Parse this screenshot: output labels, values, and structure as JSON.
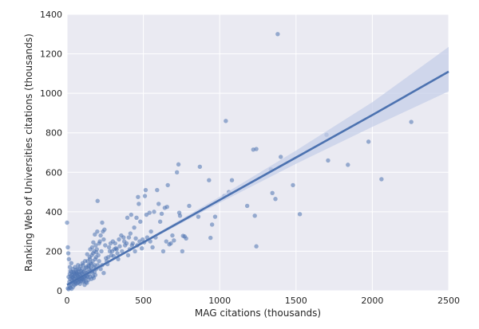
{
  "chart_data": {
    "type": "scatter",
    "title": "",
    "xlabel": "MAG citations (thousands)",
    "ylabel": "Ranking Web of Universities citations (thousands)",
    "xlim": [
      0,
      2500
    ],
    "ylim": [
      0,
      1400
    ],
    "x_ticks": [
      0,
      500,
      1000,
      1500,
      2000,
      2500
    ],
    "y_ticks": [
      0,
      200,
      400,
      600,
      800,
      1000,
      1200,
      1400
    ],
    "x_tick_labels": [
      "0",
      "500",
      "1000",
      "1500",
      "2000",
      "2500"
    ],
    "y_tick_labels": [
      "0",
      "200",
      "400",
      "600",
      "800",
      "1000",
      "1200",
      "1400"
    ],
    "grid": true,
    "colors": {
      "background": "#eaeaf2",
      "grid": "#ffffff",
      "points": "#4c72b0",
      "fit_line": "#4c72b0",
      "confidence_band": "#c5cfe8"
    },
    "regression": {
      "x": [
        0,
        500,
        1000,
        1500,
        2000,
        2500
      ],
      "y": [
        30,
        245,
        460,
        675,
        890,
        1110
      ],
      "ci_upper": [
        36,
        251,
        476,
        710,
        955,
        1235
      ],
      "ci_lower": [
        24,
        239,
        446,
        643,
        830,
        1010
      ]
    },
    "points": [
      [
        1380,
        1300
      ],
      [
        2255,
        855
      ],
      [
        1040,
        860
      ],
      [
        1700,
        790
      ],
      [
        1975,
        755
      ],
      [
        1220,
        715
      ],
      [
        1240,
        718
      ],
      [
        2060,
        565
      ],
      [
        1840,
        638
      ],
      [
        1710,
        660
      ],
      [
        1400,
        678
      ],
      [
        1335,
        615
      ],
      [
        1480,
        535
      ],
      [
        1345,
        495
      ],
      [
        1365,
        465
      ],
      [
        1525,
        388
      ],
      [
        1230,
        380
      ],
      [
        1240,
        225
      ],
      [
        1030,
        480
      ],
      [
        1060,
        500
      ],
      [
        1080,
        560
      ],
      [
        1180,
        430
      ],
      [
        970,
        375
      ],
      [
        950,
        335
      ],
      [
        940,
        268
      ],
      [
        930,
        560
      ],
      [
        870,
        628
      ],
      [
        860,
        375
      ],
      [
        800,
        430
      ],
      [
        780,
        265
      ],
      [
        770,
        275
      ],
      [
        760,
        278
      ],
      [
        755,
        200
      ],
      [
        740,
        380
      ],
      [
        735,
        395
      ],
      [
        720,
        600
      ],
      [
        730,
        640
      ],
      [
        690,
        280
      ],
      [
        680,
        240
      ],
      [
        660,
        535
      ],
      [
        655,
        425
      ],
      [
        640,
        420
      ],
      [
        620,
        390
      ],
      [
        610,
        350
      ],
      [
        600,
        440
      ],
      [
        590,
        510
      ],
      [
        570,
        400
      ],
      [
        550,
        300
      ],
      [
        540,
        395
      ],
      [
        520,
        385
      ],
      [
        515,
        510
      ],
      [
        510,
        480
      ],
      [
        495,
        260
      ],
      [
        480,
        350
      ],
      [
        470,
        440
      ],
      [
        465,
        475
      ],
      [
        455,
        370
      ],
      [
        450,
        265
      ],
      [
        440,
        320
      ],
      [
        430,
        240
      ],
      [
        420,
        385
      ],
      [
        415,
        290
      ],
      [
        410,
        210
      ],
      [
        400,
        180
      ],
      [
        395,
        370
      ],
      [
        380,
        230
      ],
      [
        370,
        270
      ],
      [
        360,
        200
      ],
      [
        340,
        260
      ],
      [
        330,
        190
      ],
      [
        320,
        215
      ],
      [
        310,
        210
      ],
      [
        300,
        250
      ],
      [
        290,
        180
      ],
      [
        280,
        200
      ],
      [
        270,
        170
      ],
      [
        260,
        150
      ],
      [
        250,
        230
      ],
      [
        245,
        310
      ],
      [
        235,
        300
      ],
      [
        230,
        345
      ],
      [
        220,
        280
      ],
      [
        215,
        250
      ],
      [
        210,
        240
      ],
      [
        200,
        455
      ],
      [
        195,
        210
      ],
      [
        190,
        170
      ],
      [
        185,
        160
      ],
      [
        180,
        130
      ],
      [
        175,
        120
      ],
      [
        170,
        190
      ],
      [
        165,
        220
      ],
      [
        160,
        100
      ],
      [
        155,
        140
      ],
      [
        150,
        160
      ],
      [
        145,
        110
      ],
      [
        140,
        130
      ],
      [
        135,
        150
      ],
      [
        130,
        90
      ],
      [
        125,
        120
      ],
      [
        120,
        80
      ],
      [
        115,
        100
      ],
      [
        110,
        70
      ],
      [
        105,
        130
      ],
      [
        100,
        60
      ],
      [
        95,
        90
      ],
      [
        90,
        50
      ],
      [
        85,
        80
      ],
      [
        80,
        110
      ],
      [
        75,
        60
      ],
      [
        70,
        40
      ],
      [
        65,
        90
      ],
      [
        60,
        50
      ],
      [
        55,
        70
      ],
      [
        50,
        30
      ],
      [
        45,
        60
      ],
      [
        40,
        20
      ],
      [
        35,
        40
      ],
      [
        30,
        10
      ],
      [
        25,
        30
      ],
      [
        20,
        15
      ],
      [
        15,
        25
      ],
      [
        10,
        8
      ],
      [
        5,
        12
      ],
      [
        0,
        345
      ],
      [
        5,
        220
      ],
      [
        8,
        190
      ],
      [
        12,
        160
      ],
      [
        18,
        120
      ],
      [
        22,
        100
      ],
      [
        28,
        140
      ],
      [
        32,
        80
      ],
      [
        38,
        110
      ],
      [
        42,
        95
      ],
      [
        48,
        75
      ],
      [
        52,
        120
      ],
      [
        58,
        105
      ],
      [
        62,
        85
      ],
      [
        68,
        65
      ],
      [
        72,
        130
      ],
      [
        78,
        95
      ],
      [
        82,
        55
      ],
      [
        88,
        125
      ],
      [
        92,
        70
      ],
      [
        98,
        110
      ],
      [
        102,
        140
      ],
      [
        108,
        95
      ],
      [
        112,
        60
      ],
      [
        118,
        150
      ],
      [
        122,
        115
      ],
      [
        128,
        75
      ],
      [
        132,
        185
      ],
      [
        138,
        95
      ],
      [
        142,
        125
      ],
      [
        148,
        170
      ],
      [
        152,
        210
      ],
      [
        158,
        135
      ],
      [
        162,
        180
      ],
      [
        168,
        150
      ],
      [
        172,
        245
      ],
      [
        178,
        200
      ],
      [
        182,
        285
      ],
      [
        188,
        230
      ],
      [
        192,
        195
      ],
      [
        198,
        300
      ],
      [
        205,
        180
      ],
      [
        225,
        200
      ],
      [
        240,
        260
      ],
      [
        255,
        165
      ],
      [
        265,
        135
      ],
      [
        275,
        220
      ],
      [
        285,
        240
      ],
      [
        295,
        200
      ],
      [
        305,
        175
      ],
      [
        315,
        240
      ],
      [
        325,
        210
      ],
      [
        335,
        160
      ],
      [
        345,
        225
      ],
      [
        355,
        280
      ],
      [
        375,
        250
      ],
      [
        390,
        240
      ],
      [
        405,
        270
      ],
      [
        425,
        230
      ],
      [
        445,
        200
      ],
      [
        460,
        230
      ],
      [
        475,
        250
      ],
      [
        490,
        215
      ],
      [
        505,
        245
      ],
      [
        525,
        270
      ],
      [
        545,
        250
      ],
      [
        560,
        220
      ],
      [
        580,
        270
      ],
      [
        630,
        200
      ],
      [
        650,
        250
      ],
      [
        670,
        235
      ],
      [
        700,
        255
      ],
      [
        30,
        55
      ],
      [
        40,
        45
      ],
      [
        50,
        85
      ],
      [
        60,
        35
      ],
      [
        70,
        75
      ],
      [
        80,
        45
      ],
      [
        90,
        100
      ],
      [
        100,
        85
      ],
      [
        110,
        50
      ],
      [
        120,
        65
      ],
      [
        20,
        60
      ],
      [
        25,
        75
      ],
      [
        35,
        65
      ],
      [
        45,
        90
      ],
      [
        55,
        40
      ],
      [
        65,
        55
      ],
      [
        75,
        85
      ],
      [
        85,
        35
      ],
      [
        95,
        65
      ],
      [
        105,
        45
      ],
      [
        15,
        45
      ],
      [
        10,
        70
      ],
      [
        18,
        85
      ],
      [
        28,
        95
      ],
      [
        38,
        70
      ],
      [
        48,
        50
      ],
      [
        58,
        95
      ],
      [
        68,
        110
      ],
      [
        78,
        70
      ],
      [
        88,
        60
      ],
      [
        200,
        130
      ],
      [
        210,
        150
      ],
      [
        220,
        110
      ],
      [
        230,
        130
      ],
      [
        240,
        90
      ],
      [
        150,
        70
      ],
      [
        160,
        60
      ],
      [
        170,
        75
      ],
      [
        180,
        95
      ],
      [
        190,
        110
      ],
      [
        130,
        40
      ],
      [
        140,
        55
      ],
      [
        115,
        30
      ],
      [
        125,
        45
      ],
      [
        135,
        70
      ],
      [
        145,
        85
      ],
      [
        155,
        115
      ],
      [
        165,
        95
      ],
      [
        175,
        65
      ],
      [
        185,
        80
      ]
    ]
  }
}
